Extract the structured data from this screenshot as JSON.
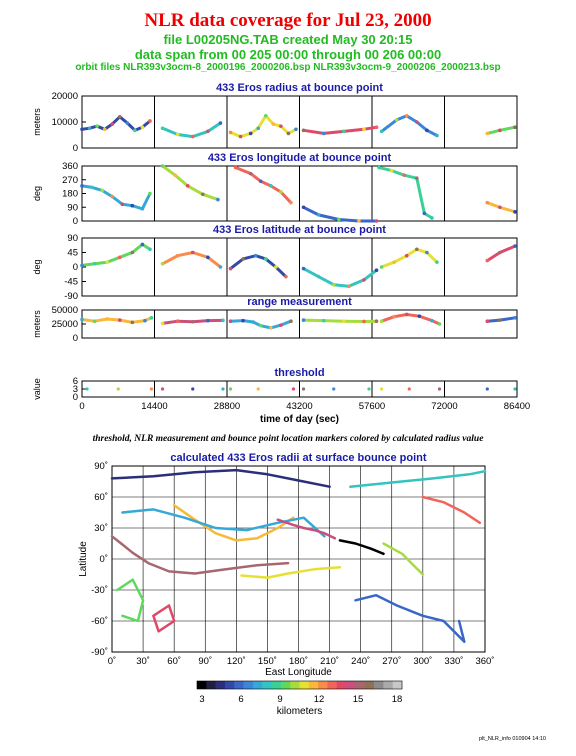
{
  "header": {
    "title": "NLR data coverage for Jul 23, 2000",
    "file_line": "file L00205NG.TAB created May 30 20:15",
    "span_line": "data span from 00 205 00:00 through 00 206 00:00",
    "orbit_line": "orbit files NLR393v3ocm-8_2000196_2000206.bsp NLR393v3ocm-9_2000206_2000213.bsp"
  },
  "caption": "threshold, NLR measurement and bounce point location markers colored by calculated radius value",
  "footer": "plt_NLR_info 010904 14:10",
  "colors": {
    "title": "#ee0000",
    "subtitle": "#22bb22",
    "panel_title": "#1a1aa6"
  },
  "colorbar": {
    "label": "kilometers",
    "ticks": [
      "3",
      "6",
      "9",
      "12",
      "15",
      "18"
    ],
    "colors": [
      "#000000",
      "#1f1f3f",
      "#2b2f7a",
      "#3348a8",
      "#3a66c8",
      "#3c86d8",
      "#35a8d8",
      "#33c4c0",
      "#3ad096",
      "#5fd85e",
      "#a6dc3c",
      "#e6e034",
      "#f8b838",
      "#f88c48",
      "#f0645a",
      "#e0486a",
      "#c8507a",
      "#a86670",
      "#8e7258",
      "#8c8c8c",
      "#aaaaaa",
      "#c8c8c8"
    ]
  },
  "chart_data": [
    {
      "type": "scatter",
      "title": "433 Eros radius at bounce point",
      "ylabel": "meters",
      "ylim": [
        0,
        25000
      ],
      "yticks": [
        "20000",
        "10000",
        "0"
      ],
      "xlim": [
        0,
        86400
      ],
      "gaps": [
        14400,
        28800,
        43200,
        57600,
        72000
      ],
      "series": [
        {
          "x": [
            0,
            1500,
            3000,
            4500,
            6000,
            7500,
            9000,
            10500,
            12000,
            13500
          ],
          "y": [
            9000,
            9500,
            10500,
            9000,
            11500,
            15000,
            12000,
            8500,
            10000,
            13000
          ]
        },
        {
          "x": [
            16000,
            19000,
            22000,
            25000,
            27500
          ],
          "y": [
            9500,
            6500,
            5500,
            8000,
            12000
          ]
        },
        {
          "x": [
            29500,
            31500,
            33500,
            35000,
            36500,
            38000,
            39500,
            41000,
            42500
          ],
          "y": [
            7500,
            5500,
            7000,
            9500,
            15500,
            11500,
            10500,
            7000,
            9000
          ]
        },
        {
          "x": [
            44000,
            48000,
            52000,
            56000,
            58500
          ],
          "y": [
            8500,
            7000,
            8000,
            9000,
            10000
          ]
        },
        {
          "x": [
            59500,
            62500,
            64500,
            66500,
            68500,
            70500
          ],
          "y": [
            8000,
            13500,
            15500,
            12500,
            8500,
            6000
          ]
        },
        {
          "x": [
            80500,
            83000,
            86000
          ],
          "y": [
            7000,
            8500,
            10000
          ]
        }
      ]
    },
    {
      "type": "scatter",
      "title": "433 Eros longitude at bounce point",
      "ylabel": "deg",
      "ylim": [
        0,
        360
      ],
      "yticks": [
        "360",
        "270",
        "180",
        "90",
        "0"
      ],
      "xlim": [
        0,
        86400
      ],
      "gaps": [
        14400,
        28800,
        43200,
        57600,
        72000
      ],
      "series": [
        {
          "x": [
            0,
            2000,
            4000,
            6000,
            8000,
            10000,
            12000,
            13500
          ],
          "y": [
            230,
            220,
            200,
            160,
            110,
            100,
            80,
            180
          ]
        },
        {
          "x": [
            16000,
            18500,
            21000,
            24000,
            27000
          ],
          "y": [
            360,
            300,
            230,
            175,
            140
          ]
        },
        {
          "x": [
            30500,
            33500,
            35500,
            37500,
            39500,
            41500
          ],
          "y": [
            350,
            310,
            260,
            230,
            190,
            120
          ]
        },
        {
          "x": [
            44000,
            47000,
            51000,
            55000,
            58500
          ],
          "y": [
            90,
            40,
            10,
            0,
            0
          ]
        },
        {
          "x": [
            59000,
            61500,
            64000,
            66500,
            68000,
            69500
          ],
          "y": [
            350,
            330,
            300,
            280,
            50,
            20
          ]
        },
        {
          "x": [
            80500,
            83000,
            86000
          ],
          "y": [
            120,
            90,
            60
          ]
        }
      ]
    },
    {
      "type": "scatter",
      "title": "433 Eros latitude at bounce point",
      "ylabel": "deg",
      "ylim": [
        -90,
        90
      ],
      "yticks": [
        "90",
        "45",
        "0",
        "-45",
        "-90"
      ],
      "xlim": [
        0,
        86400
      ],
      "gaps": [
        14400,
        28800,
        43200,
        57600,
        72000
      ],
      "series": [
        {
          "x": [
            0,
            2500,
            5000,
            7500,
            10000,
            12000,
            13500
          ],
          "y": [
            5,
            10,
            15,
            30,
            45,
            70,
            55
          ]
        },
        {
          "x": [
            16000,
            19000,
            22000,
            25000,
            27500
          ],
          "y": [
            10,
            35,
            45,
            30,
            0
          ]
        },
        {
          "x": [
            29500,
            32000,
            34500,
            36500,
            38500,
            40500
          ],
          "y": [
            -5,
            25,
            35,
            25,
            0,
            -30
          ]
        },
        {
          "x": [
            44000,
            47000,
            50000,
            53000,
            56000,
            58500
          ],
          "y": [
            -5,
            -30,
            -55,
            -60,
            -40,
            -10
          ]
        },
        {
          "x": [
            59500,
            62000,
            64500,
            66500,
            68500,
            70500
          ],
          "y": [
            0,
            15,
            35,
            55,
            45,
            15
          ]
        },
        {
          "x": [
            80500,
            83000,
            86000
          ],
          "y": [
            20,
            45,
            65
          ]
        }
      ]
    },
    {
      "type": "scatter",
      "title": "range measurement",
      "ylabel": "meters",
      "ylim": [
        0,
        50000
      ],
      "yticks": [
        "50000",
        "25000",
        "0"
      ],
      "xlim": [
        0,
        86400
      ],
      "gaps": [
        14400,
        28800,
        43200,
        57600,
        72000
      ],
      "series": [
        {
          "x": [
            0,
            2500,
            5000,
            7500,
            10000,
            12500,
            13800
          ],
          "y": [
            33000,
            30000,
            34000,
            32000,
            28000,
            31000,
            36000
          ]
        },
        {
          "x": [
            16000,
            19000,
            22000,
            25000,
            28000
          ],
          "y": [
            26000,
            30000,
            29000,
            31000,
            31500
          ]
        },
        {
          "x": [
            29500,
            32000,
            34000,
            35500,
            37500,
            39500,
            41500
          ],
          "y": [
            30000,
            31000,
            28500,
            22000,
            18000,
            23000,
            30000
          ]
        },
        {
          "x": [
            44000,
            48000,
            52000,
            56000,
            58500
          ],
          "y": [
            32000,
            31000,
            30000,
            29500,
            30000
          ]
        },
        {
          "x": [
            59500,
            62000,
            64500,
            67000,
            69500,
            71000
          ],
          "y": [
            30000,
            38000,
            42000,
            39000,
            31000,
            25000
          ]
        },
        {
          "x": [
            80500,
            83000,
            86000
          ],
          "y": [
            30000,
            32000,
            36000
          ]
        }
      ]
    },
    {
      "type": "scatter",
      "title": "threshold",
      "ylabel": "value",
      "xlabel": "time of day (sec)",
      "ylim": [
        0,
        6
      ],
      "yticks": [
        "6",
        "3",
        "0"
      ],
      "xlim": [
        0,
        86400
      ],
      "xticks": [
        "0",
        "14400",
        "28800",
        "43200",
        "57600",
        "72000",
        "86400"
      ],
      "gaps": [
        14400,
        28800,
        43200,
        57600,
        72000
      ],
      "series": [
        {
          "x": [
            1000,
            7200,
            13800,
            16000,
            22000,
            28000,
            29500,
            35000,
            42000,
            44000,
            50000,
            57000,
            59500,
            65000,
            71000,
            80500,
            86000
          ],
          "y": [
            3,
            3,
            3,
            3,
            3,
            3,
            3,
            3,
            3,
            3,
            3,
            3,
            3,
            3,
            3,
            3,
            3
          ]
        }
      ]
    },
    {
      "type": "scatter",
      "title": "calculated 433 Eros radii at surface bounce point",
      "xlabel": "East Longitude",
      "ylabel": "Latitude",
      "xlim": [
        0,
        360
      ],
      "ylim": [
        -90,
        90
      ],
      "xticks": [
        "0˚",
        "30˚",
        "60˚",
        "90˚",
        "120˚",
        "150˚",
        "180˚",
        "210˚",
        "240˚",
        "270˚",
        "300˚",
        "330˚",
        "360˚"
      ],
      "yticks": [
        "90˚",
        "60˚",
        "30˚",
        "0˚",
        "-30˚",
        "-60˚",
        "-90˚"
      ],
      "series": [
        {
          "x": [
            0,
            40,
            80,
            120,
            150,
            180,
            210
          ],
          "y": [
            78,
            80,
            84,
            86,
            82,
            76,
            70
          ]
        },
        {
          "x": [
            230,
            270,
            310,
            345,
            360
          ],
          "y": [
            70,
            74,
            78,
            82,
            85
          ]
        },
        {
          "x": [
            60,
            80,
            100,
            120,
            140,
            160,
            175
          ],
          "y": [
            52,
            38,
            25,
            18,
            20,
            30,
            40
          ]
        },
        {
          "x": [
            0,
            10,
            20,
            35,
            55,
            80,
            110,
            140,
            170
          ],
          "y": [
            22,
            14,
            6,
            -4,
            -12,
            -14,
            -10,
            -6,
            -4
          ]
        },
        {
          "x": [
            10,
            40,
            70,
            100,
            130,
            160,
            185,
            205
          ],
          "y": [
            45,
            48,
            40,
            30,
            28,
            35,
            40,
            22
          ]
        },
        {
          "x": [
            125,
            150,
            170,
            195,
            220
          ],
          "y": [
            -16,
            -18,
            -14,
            -10,
            -8
          ]
        },
        {
          "x": [
            160,
            175,
            185,
            195,
            205,
            215
          ],
          "y": [
            38,
            33,
            30,
            28,
            25,
            20
          ]
        },
        {
          "x": [
            220,
            235,
            250,
            262
          ],
          "y": [
            18,
            15,
            10,
            5
          ]
        },
        {
          "x": [
            262,
            280,
            290,
            300
          ],
          "y": [
            15,
            5,
            -5,
            -15
          ]
        },
        {
          "x": [
            40,
            55,
            60,
            45,
            40
          ],
          "y": [
            -55,
            -45,
            -60,
            -70,
            -55
          ]
        },
        {
          "x": [
            235,
            255,
            275,
            300,
            320,
            330,
            340,
            335
          ],
          "y": [
            -40,
            -35,
            -45,
            -55,
            -60,
            -70,
            -80,
            -60
          ]
        },
        {
          "x": [
            5,
            20,
            30,
            25,
            10
          ],
          "y": [
            -30,
            -20,
            -40,
            -60,
            -55
          ]
        },
        {
          "x": [
            300,
            320,
            340,
            355
          ],
          "y": [
            60,
            55,
            45,
            35
          ]
        }
      ]
    }
  ]
}
